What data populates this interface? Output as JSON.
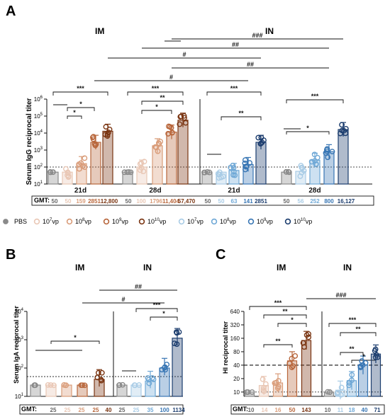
{
  "panel_a": {
    "letter": "A",
    "route_im": "IM",
    "route_in": "IN",
    "ylabel": "Serum IgG reciprocal titer",
    "yticks": [
      "10^1",
      "10^2",
      "10^3",
      "10^4",
      "10^5",
      "10^6"
    ],
    "xlabels": [
      "21d",
      "28d",
      "21d",
      "28d"
    ],
    "gmt_label": "GMT:",
    "gmt": [
      [
        "50",
        "50",
        "159",
        "2851",
        "12,800"
      ],
      [
        "50",
        "100",
        "1796",
        "11,404",
        "57,470"
      ],
      [
        "50",
        "50",
        "63",
        "141",
        "2851"
      ],
      [
        "50",
        "56",
        "252",
        "800",
        "16,127"
      ]
    ],
    "hash_labels": [
      "###",
      "##",
      "#",
      "##",
      "#"
    ],
    "sig_labels": [
      "***",
      "*",
      "*",
      "***",
      "*",
      "**",
      "***",
      "**",
      "***",
      "*"
    ]
  },
  "legend": {
    "items": [
      "PBS",
      "10^7vp",
      "10^8vp",
      "10^9vp",
      "10^10vp",
      "10^7vp",
      "10^8vp",
      "10^9vp",
      "10^10vp"
    ]
  },
  "panel_b": {
    "letter": "B",
    "route_im": "IM",
    "route_in": "IN",
    "ylabel": "Serum IgA reciprocal titer",
    "yticks": [
      "10^1",
      "10^2",
      "10^3",
      "10^4"
    ],
    "gmt_label": "GMT:",
    "gmt": [
      "25",
      "25",
      "25",
      "25",
      "40",
      "25",
      "25",
      "35",
      "100",
      "1134"
    ],
    "hash_labels": [
      "##",
      "#"
    ],
    "sig_labels": [
      "*",
      "***",
      "*"
    ]
  },
  "panel_c": {
    "letter": "C",
    "route_im": "IM",
    "route_in": "IN",
    "ylabel": "HI reciprocal titer",
    "yticks": [
      "10",
      "20",
      "40",
      "80",
      "160",
      "320",
      "640"
    ],
    "gmt_label": "GMT:",
    "gmt": [
      "10",
      "14",
      "16",
      "50",
      "143",
      "10",
      "11",
      "18",
      "40",
      "71"
    ],
    "hash_labels": [
      "###"
    ],
    "sig_labels": [
      "***",
      "**",
      "*",
      "**",
      "***",
      "**",
      "**",
      "*"
    ]
  },
  "colors": {
    "pbs": "#8a8a8a",
    "im": [
      "#e9c7b5",
      "#d99c79",
      "#b8663b",
      "#7a3512"
    ],
    "in": [
      "#a9cce6",
      "#6fa8d6",
      "#3876b4",
      "#1c3d6e"
    ],
    "pink_bg": "#f6d9e4",
    "blue_bg": "#d2e6f5"
  },
  "chart_data": [
    {
      "type": "bar",
      "panel": "A",
      "title": "",
      "ylabel": "Serum IgG reciprocal titer",
      "yscale": "log",
      "ylim": [
        10,
        1000000
      ],
      "limit_of_detection": 100,
      "groups": [
        "IM 21d",
        "IM 28d",
        "IN 21d",
        "IN 28d"
      ],
      "series": [
        {
          "name": "PBS",
          "values": [
            50,
            50,
            50,
            50
          ]
        },
        {
          "name": "10^7vp",
          "values": [
            50,
            100,
            50,
            56
          ]
        },
        {
          "name": "10^8vp",
          "values": [
            159,
            1796,
            63,
            252
          ]
        },
        {
          "name": "10^9vp",
          "values": [
            2851,
            11404,
            141,
            800
          ]
        },
        {
          "name": "10^10vp",
          "values": [
            12800,
            57470,
            2851,
            16127
          ]
        }
      ]
    },
    {
      "type": "bar",
      "panel": "B",
      "title": "",
      "ylabel": "Serum IgA reciprocal titer",
      "yscale": "log",
      "ylim": [
        10,
        10000
      ],
      "limit_of_detection": 50,
      "groups": [
        "IM",
        "IN"
      ],
      "series": [
        {
          "name": "PBS",
          "values": [
            25,
            25
          ]
        },
        {
          "name": "10^7vp",
          "values": [
            25,
            25
          ]
        },
        {
          "name": "10^8vp",
          "values": [
            25,
            35
          ]
        },
        {
          "name": "10^9vp",
          "values": [
            25,
            100
          ]
        },
        {
          "name": "10^10vp",
          "values": [
            40,
            1134
          ]
        }
      ]
    },
    {
      "type": "bar",
      "panel": "C",
      "title": "",
      "ylabel": "HI reciprocal titer",
      "yscale": "log2",
      "ylim": [
        8,
        640
      ],
      "reference_lines": [
        10,
        40
      ],
      "groups": [
        "IM",
        "IN"
      ],
      "series": [
        {
          "name": "PBS",
          "values": [
            10,
            10
          ]
        },
        {
          "name": "10^7vp",
          "values": [
            14,
            11
          ]
        },
        {
          "name": "10^8vp",
          "values": [
            16,
            18
          ]
        },
        {
          "name": "10^9vp",
          "values": [
            50,
            40
          ]
        },
        {
          "name": "10^10vp",
          "values": [
            143,
            71
          ]
        }
      ]
    }
  ]
}
